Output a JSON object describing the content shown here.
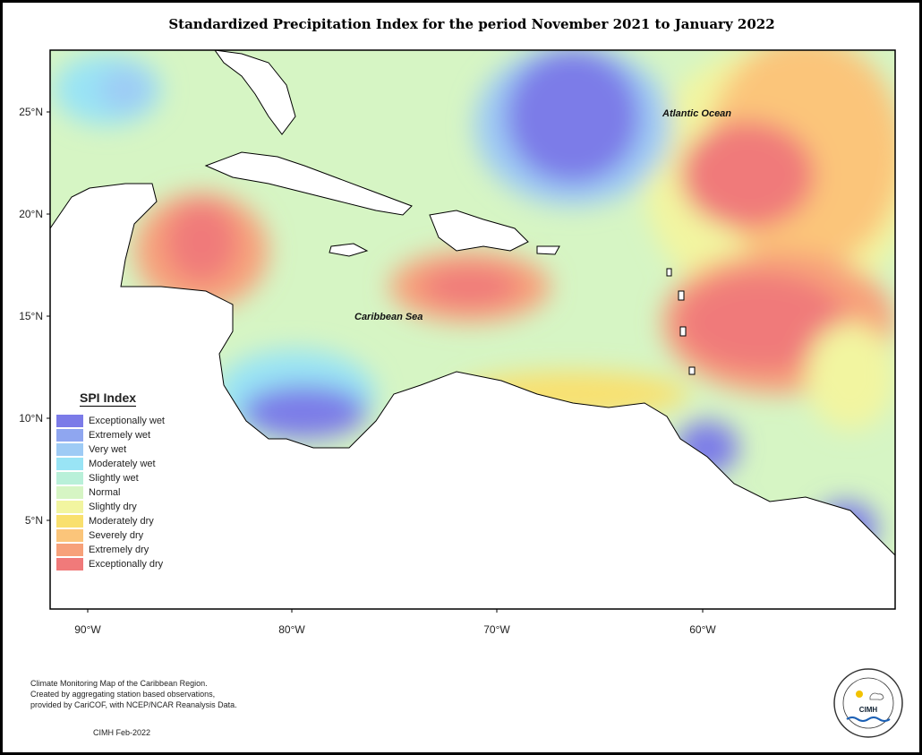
{
  "title": "Standardized Precipitation Index for the period November 2021 to January 2022",
  "map": {
    "region": "Caribbean",
    "lon_range": [
      -92,
      -50
    ],
    "lat_range": [
      1,
      28
    ],
    "x_ticks": [
      "90°W",
      "80°W",
      "70°W",
      "60°W"
    ],
    "y_ticks": [
      "25°N",
      "20°N",
      "15°N",
      "10°N",
      "5°N"
    ],
    "labels": {
      "atlantic": "Atlantic Ocean",
      "caribbean": "Caribbean Sea"
    }
  },
  "legend": {
    "title": "SPI Index",
    "items": [
      {
        "label": "Exceptionally wet",
        "color": "#7b7be8"
      },
      {
        "label": "Extremely wet",
        "color": "#8fa6f0"
      },
      {
        "label": "Very wet",
        "color": "#9ecbf5"
      },
      {
        "label": "Moderately wet",
        "color": "#99e4f5"
      },
      {
        "label": "Slightly wet",
        "color": "#b9f0d9"
      },
      {
        "label": "Normal",
        "color": "#d6f5c4"
      },
      {
        "label": "Slightly dry",
        "color": "#f2f5a0"
      },
      {
        "label": "Moderately dry",
        "color": "#f9e06e"
      },
      {
        "label": "Severely dry",
        "color": "#fbc57a"
      },
      {
        "label": "Extremely dry",
        "color": "#f7a17a"
      },
      {
        "label": "Exceptionally dry",
        "color": "#f07a7a"
      }
    ]
  },
  "footer": {
    "line1": "Climate Monitoring Map of the Caribbean Region.",
    "line2": "Created by aggregating station based observations,",
    "line3": "provided by CariCOF, with NCEP/NCAR Reanalysis Data.",
    "date": "CIMH Feb-2022"
  },
  "logo": {
    "text": "CIMH",
    "ring_text": "Caribbean Institute for Meteorology and Hydrology"
  }
}
